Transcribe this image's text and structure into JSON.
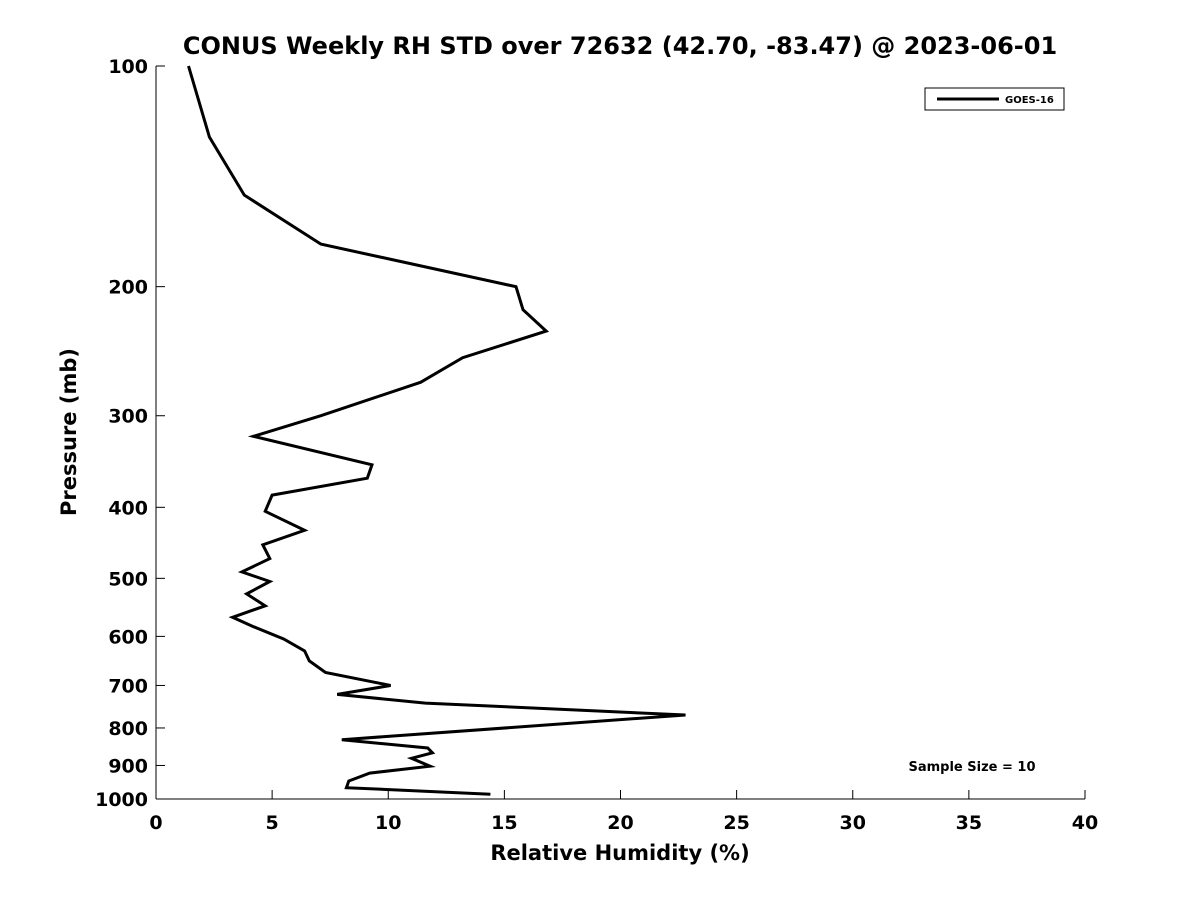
{
  "chart_data": {
    "type": "line",
    "title": "CONUS Weekly RH STD over 72632 (42.70, -83.47) @ 2023-06-01",
    "xlabel": "Relative Humidity (%)",
    "ylabel": "Pressure (mb)",
    "xlim": [
      0,
      40
    ],
    "ylim": [
      1000,
      100
    ],
    "y_scale": "log",
    "y_reversed": true,
    "x_ticks": [
      0,
      5,
      10,
      15,
      20,
      25,
      30,
      35,
      40
    ],
    "y_ticks": [
      100,
      200,
      300,
      400,
      500,
      600,
      700,
      800,
      900,
      1000
    ],
    "grid": false,
    "legend": {
      "position": "top-right",
      "entries": [
        "GOES-16"
      ]
    },
    "annotation": "Sample Size = 10",
    "series": [
      {
        "name": "GOES-16",
        "color": "#000000",
        "points": [
          [
            1.4,
            100
          ],
          [
            2.3,
            125
          ],
          [
            3.8,
            150
          ],
          [
            7.1,
            175
          ],
          [
            15.5,
            200
          ],
          [
            15.8,
            215
          ],
          [
            16.8,
            230
          ],
          [
            13.2,
            250
          ],
          [
            11.4,
            270
          ],
          [
            7.1,
            300
          ],
          [
            4.2,
            320
          ],
          [
            9.3,
            350
          ],
          [
            9.1,
            365
          ],
          [
            5.0,
            385
          ],
          [
            4.7,
            405
          ],
          [
            6.4,
            430
          ],
          [
            4.6,
            450
          ],
          [
            4.9,
            470
          ],
          [
            3.7,
            490
          ],
          [
            4.9,
            505
          ],
          [
            3.9,
            525
          ],
          [
            4.7,
            545
          ],
          [
            3.3,
            565
          ],
          [
            4.2,
            582
          ],
          [
            5.5,
            605
          ],
          [
            6.4,
            628
          ],
          [
            6.6,
            648
          ],
          [
            7.3,
            672
          ],
          [
            10.1,
            700
          ],
          [
            7.8,
            720
          ],
          [
            11.6,
            740
          ],
          [
            22.8,
            768
          ],
          [
            8.0,
            830
          ],
          [
            11.7,
            852
          ],
          [
            11.9,
            865
          ],
          [
            11.0,
            880
          ],
          [
            11.8,
            902
          ],
          [
            9.2,
            922
          ],
          [
            8.3,
            945
          ],
          [
            8.2,
            965
          ],
          [
            14.4,
            985
          ]
        ]
      }
    ]
  }
}
